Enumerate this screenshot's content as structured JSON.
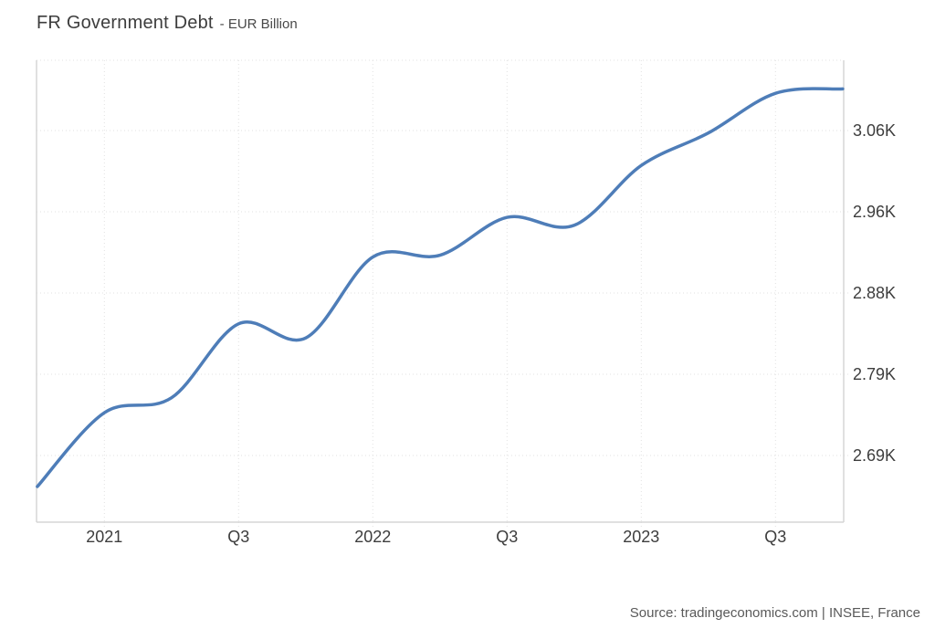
{
  "header": {
    "title": "FR Government Debt",
    "subtitle": "- EUR Billion"
  },
  "footer": {
    "source": "Source: tradingeconomics.com | INSEE, France"
  },
  "chart_data": {
    "type": "line",
    "title": "FR Government Debt",
    "ylabel": "EUR Billion",
    "x": [
      "2020 Q4",
      "2021 Q1",
      "2021 Q2",
      "2021 Q3",
      "2021 Q4",
      "2022 Q1",
      "2022 Q2",
      "2022 Q3",
      "2022 Q4",
      "2023 Q1",
      "2023 Q2",
      "2023 Q3",
      "2023 Q4"
    ],
    "values": [
      2655,
      2739,
      2756,
      2840,
      2824,
      2916,
      2918,
      2961,
      2952,
      3020,
      3057,
      3102,
      3107
    ],
    "unit": "EUR Billion",
    "x_tick_labels": [
      "2021",
      "Q3",
      "2022",
      "Q3",
      "2023",
      "Q3"
    ],
    "y_tick_labels": [
      "3.06K",
      "2.96K",
      "2.88K",
      "2.79K",
      "2.69K"
    ],
    "y_tick_values": [
      3060,
      2960,
      2880,
      2790,
      2690
    ],
    "ylim": [
      2620,
      3135
    ],
    "grid": true,
    "legend": false,
    "line_color": "#4e7db8",
    "grid_color": "#e1e1e1",
    "border_color": "#d6d6d6"
  }
}
